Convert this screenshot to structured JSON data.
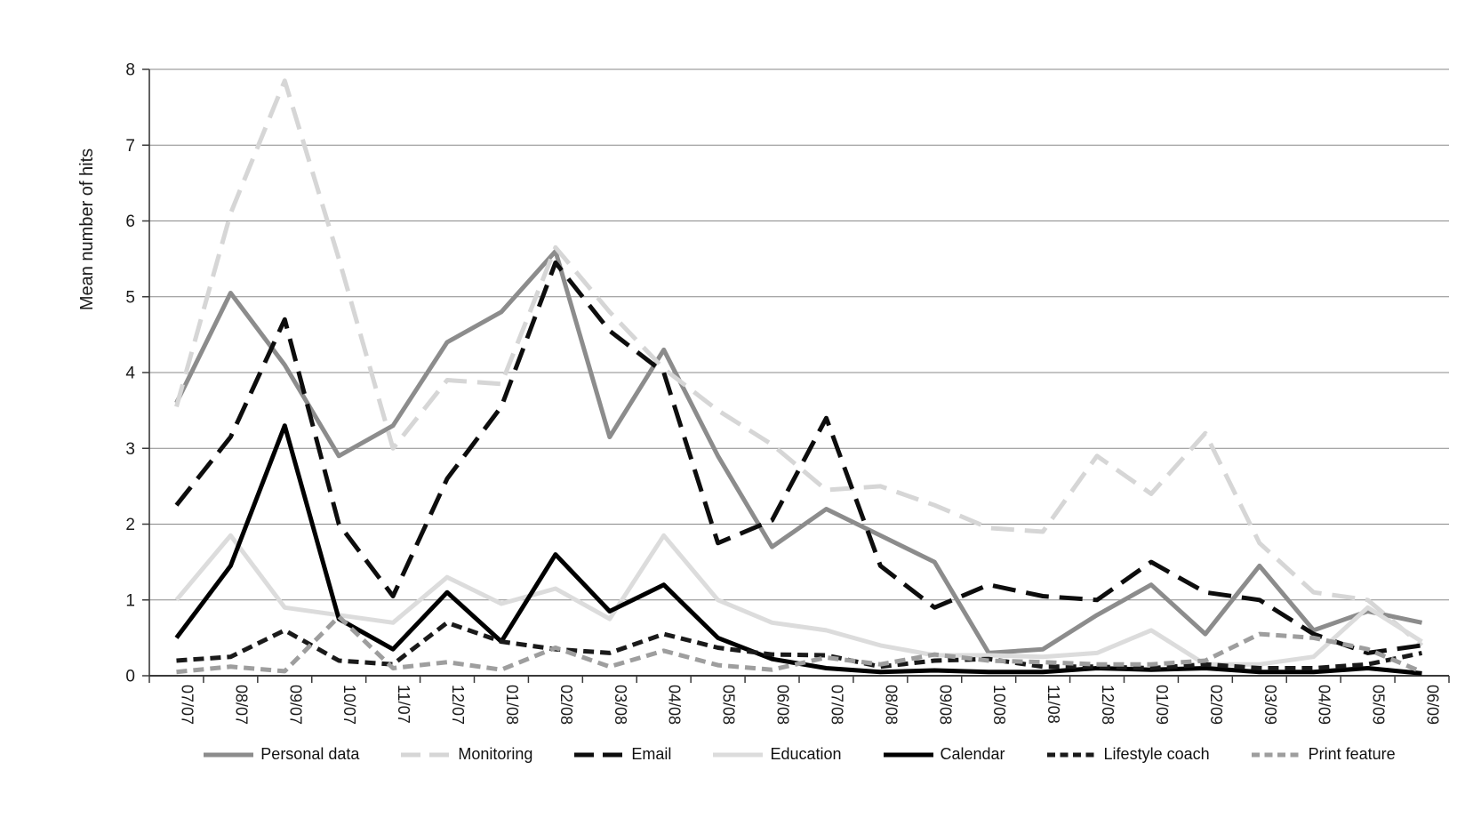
{
  "chart_data": {
    "type": "line",
    "title": "",
    "xlabel": "",
    "ylabel": "Mean number of hits",
    "ylim": [
      0,
      8
    ],
    "yticks": [
      0,
      1,
      2,
      3,
      4,
      5,
      6,
      7,
      8
    ],
    "grid": "horizontal",
    "legend_position": "bottom",
    "x_labels": [
      "07/07",
      "08/07",
      "09/07",
      "10/07",
      "11/07",
      "12/07",
      "01/08",
      "02/08",
      "03/08",
      "04/08",
      "05/08",
      "06/08",
      "07/08",
      "08/08",
      "09/08",
      "10/08",
      "11/08",
      "12/08",
      "01/09",
      "02/09",
      "03/09",
      "04/09",
      "05/09",
      "06/09"
    ],
    "series": [
      {
        "name": "Personal data",
        "color": "#8c8c8c",
        "dash": "solid",
        "values": [
          3.6,
          5.05,
          4.1,
          2.9,
          3.3,
          4.4,
          4.8,
          5.6,
          3.15,
          4.3,
          2.9,
          1.7,
          2.2,
          1.85,
          1.5,
          0.3,
          0.35,
          0.8,
          1.2,
          0.55,
          1.45,
          0.6,
          0.85,
          0.7
        ]
      },
      {
        "name": "Monitoring",
        "color": "#d6d6d6",
        "dash": "long",
        "values": [
          3.55,
          6.1,
          7.85,
          5.5,
          3.0,
          3.9,
          3.85,
          5.65,
          4.8,
          4.05,
          3.5,
          3.05,
          2.45,
          2.5,
          2.25,
          1.95,
          1.9,
          2.9,
          2.4,
          3.2,
          1.75,
          1.1,
          1.0,
          0.4
        ]
      },
      {
        "name": "Email",
        "color": "#0d0d0d",
        "dash": "long",
        "values": [
          2.25,
          3.15,
          4.7,
          2.0,
          1.05,
          2.6,
          3.55,
          5.45,
          4.55,
          4.0,
          1.75,
          2.05,
          3.4,
          1.45,
          0.9,
          1.2,
          1.05,
          1.0,
          1.5,
          1.1,
          1.0,
          0.55,
          0.3,
          0.4
        ]
      },
      {
        "name": "Education",
        "color": "#dcdcdc",
        "dash": "solid",
        "values": [
          1.0,
          1.85,
          0.9,
          0.8,
          0.7,
          1.3,
          0.95,
          1.15,
          0.75,
          1.85,
          1.0,
          0.7,
          0.6,
          0.4,
          0.27,
          0.27,
          0.25,
          0.3,
          0.6,
          0.15,
          0.15,
          0.25,
          0.9,
          0.45
        ]
      },
      {
        "name": "Calendar",
        "color": "#000000",
        "dash": "solid",
        "values": [
          0.5,
          1.45,
          3.3,
          0.75,
          0.35,
          1.1,
          0.45,
          1.6,
          0.85,
          1.2,
          0.5,
          0.22,
          0.1,
          0.05,
          0.07,
          0.05,
          0.05,
          0.1,
          0.08,
          0.1,
          0.05,
          0.05,
          0.1,
          0.03
        ]
      },
      {
        "name": "Lifestyle coach",
        "color": "#1a1a1a",
        "dash": "short",
        "values": [
          0.2,
          0.25,
          0.6,
          0.2,
          0.15,
          0.7,
          0.45,
          0.35,
          0.3,
          0.55,
          0.37,
          0.28,
          0.27,
          0.12,
          0.2,
          0.22,
          0.12,
          0.12,
          0.1,
          0.15,
          0.1,
          0.1,
          0.15,
          0.3
        ]
      },
      {
        "name": "Print feature",
        "color": "#9e9e9e",
        "dash": "short",
        "values": [
          0.05,
          0.12,
          0.06,
          0.78,
          0.1,
          0.18,
          0.08,
          0.37,
          0.12,
          0.33,
          0.14,
          0.08,
          0.24,
          0.15,
          0.28,
          0.2,
          0.18,
          0.15,
          0.15,
          0.2,
          0.55,
          0.5,
          0.35,
          0.05
        ]
      }
    ],
    "axis_colors": {
      "gridline": "#8a8a8a",
      "axis": "#3a3a3a",
      "tick_label": "#1a1a1a"
    }
  }
}
